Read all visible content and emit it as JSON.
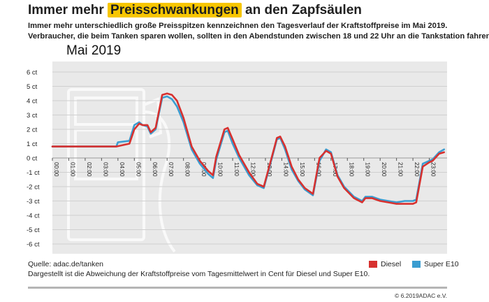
{
  "header": {
    "title_pre": "Immer mehr ",
    "title_highlight": "Preisschwankungen",
    "title_post": " an den Zapfsäulen",
    "subtitle_line1": "Immer mehr unterschiedlich große Preisspitzen kennzeichnen den Tagesverlauf der Kraftstoffpreise im Mai 2019.",
    "subtitle_line2": "Verbraucher, die beim Tanken sparen wollen, sollten in den Abendstunden zwischen 18 und 22 Uhr an die Tankstation fahren."
  },
  "footer": {
    "source": "Quelle: adac.de/tanken",
    "note": "Dargestellt ist die Abweichung der Kraftstoffpreise vom Tagesmittelwert in Cent für Diesel und Super E10.",
    "copyright": "© 6.2019ADAC e.V."
  },
  "colors": {
    "diesel": "#d7312f",
    "super_e10": "#3a9dd1",
    "highlight": "#f7c600",
    "plot_background": "#e9e9e9"
  },
  "chart_data": {
    "type": "line",
    "title": "Mai 2019",
    "xlabel": "",
    "ylabel": "",
    "ylim": [
      -6,
      6
    ],
    "yticks": [
      6,
      5,
      4,
      3,
      2,
      1,
      0,
      -1,
      -2,
      -3,
      -4,
      -5,
      -6
    ],
    "ytick_labels": [
      "6 ct",
      "5 ct",
      "4 ct",
      "3 ct",
      "2 ct",
      "1 ct",
      "0 ct",
      "-1 ct",
      "-2 ct",
      "-3 ct",
      "-4 ct",
      "-5 ct",
      "-6 ct"
    ],
    "xlim": [
      0,
      24
    ],
    "xticks": [
      0,
      1,
      2,
      3,
      4,
      5,
      6,
      7,
      8,
      9,
      10,
      11,
      12,
      13,
      14,
      15,
      16,
      17,
      18,
      19,
      20,
      21,
      22,
      23
    ],
    "xtick_labels": [
      "00:00",
      "01:00",
      "02:00",
      "03:00",
      "04:00",
      "05:00",
      "06:00",
      "07:00",
      "08:00",
      "09:00",
      "10:00",
      "11:00",
      "12:00",
      "13:00",
      "14:00",
      "15:00",
      "16:00",
      "17:00",
      "18:00",
      "19:00",
      "20:00",
      "21:00",
      "22:00",
      "23:00"
    ],
    "grid": "horizontal",
    "legend_position": "bottom-right",
    "series": [
      {
        "name": "Diesel",
        "x": [
          0,
          3.9,
          4.7,
          5.0,
          5.3,
          5.5,
          5.8,
          6.0,
          6.3,
          6.7,
          7.0,
          7.3,
          7.6,
          8.0,
          8.5,
          9.0,
          9.5,
          9.8,
          10.0,
          10.5,
          10.7,
          11.0,
          11.4,
          12.0,
          12.5,
          12.9,
          13.4,
          13.7,
          13.9,
          14.2,
          14.6,
          15.0,
          15.4,
          15.9,
          16.3,
          16.7,
          17.0,
          17.4,
          17.8,
          18.4,
          18.9,
          19.1,
          19.5,
          20.0,
          20.5,
          21.0,
          21.5,
          22.0,
          22.2,
          22.6,
          23.0,
          23.2,
          23.6,
          23.9
        ],
        "y": [
          0.8,
          0.8,
          1.0,
          2.0,
          2.4,
          2.3,
          2.3,
          1.8,
          2.1,
          4.4,
          4.5,
          4.4,
          4.0,
          2.8,
          0.8,
          -0.2,
          -0.9,
          -1.2,
          0.1,
          2.0,
          2.1,
          1.3,
          0.2,
          -1.0,
          -1.8,
          -2.0,
          0.1,
          1.4,
          1.5,
          0.8,
          -0.6,
          -1.5,
          -2.1,
          -2.5,
          0.0,
          0.5,
          0.3,
          -1.3,
          -2.1,
          -2.8,
          -3.1,
          -2.8,
          -2.8,
          -3.0,
          -3.1,
          -3.2,
          -3.2,
          -3.2,
          -3.1,
          -0.6,
          -0.3,
          -0.2,
          0.3,
          0.4
        ]
      },
      {
        "name": "Super E10",
        "x": [
          0,
          3.9,
          4.0,
          4.7,
          5.0,
          5.3,
          5.5,
          5.8,
          6.0,
          6.3,
          6.7,
          7.0,
          7.3,
          7.6,
          8.0,
          8.5,
          9.0,
          9.5,
          9.8,
          10.0,
          10.5,
          10.7,
          11.0,
          11.4,
          12.0,
          12.5,
          12.9,
          13.4,
          13.7,
          13.9,
          14.2,
          14.6,
          15.0,
          15.4,
          15.9,
          16.3,
          16.7,
          17.0,
          17.4,
          17.8,
          18.4,
          18.9,
          19.1,
          19.5,
          20.0,
          20.5,
          21.0,
          21.5,
          22.0,
          22.2,
          22.6,
          23.0,
          23.2,
          23.6,
          23.9
        ],
        "y": [
          0.8,
          0.8,
          1.1,
          1.2,
          2.3,
          2.5,
          2.3,
          2.2,
          1.7,
          2.0,
          4.2,
          4.3,
          4.1,
          3.6,
          2.5,
          0.6,
          -0.4,
          -1.1,
          -1.4,
          -0.1,
          1.8,
          1.9,
          1.0,
          0.0,
          -1.2,
          -1.9,
          -2.1,
          0.0,
          1.3,
          1.4,
          0.6,
          -0.8,
          -1.6,
          -2.2,
          -2.6,
          -0.2,
          0.6,
          0.4,
          -1.2,
          -2.0,
          -2.7,
          -3.0,
          -2.7,
          -2.7,
          -2.9,
          -3.0,
          -3.1,
          -3.0,
          -3.0,
          -2.9,
          -0.4,
          -0.2,
          -0.1,
          0.4,
          0.6
        ]
      }
    ]
  }
}
